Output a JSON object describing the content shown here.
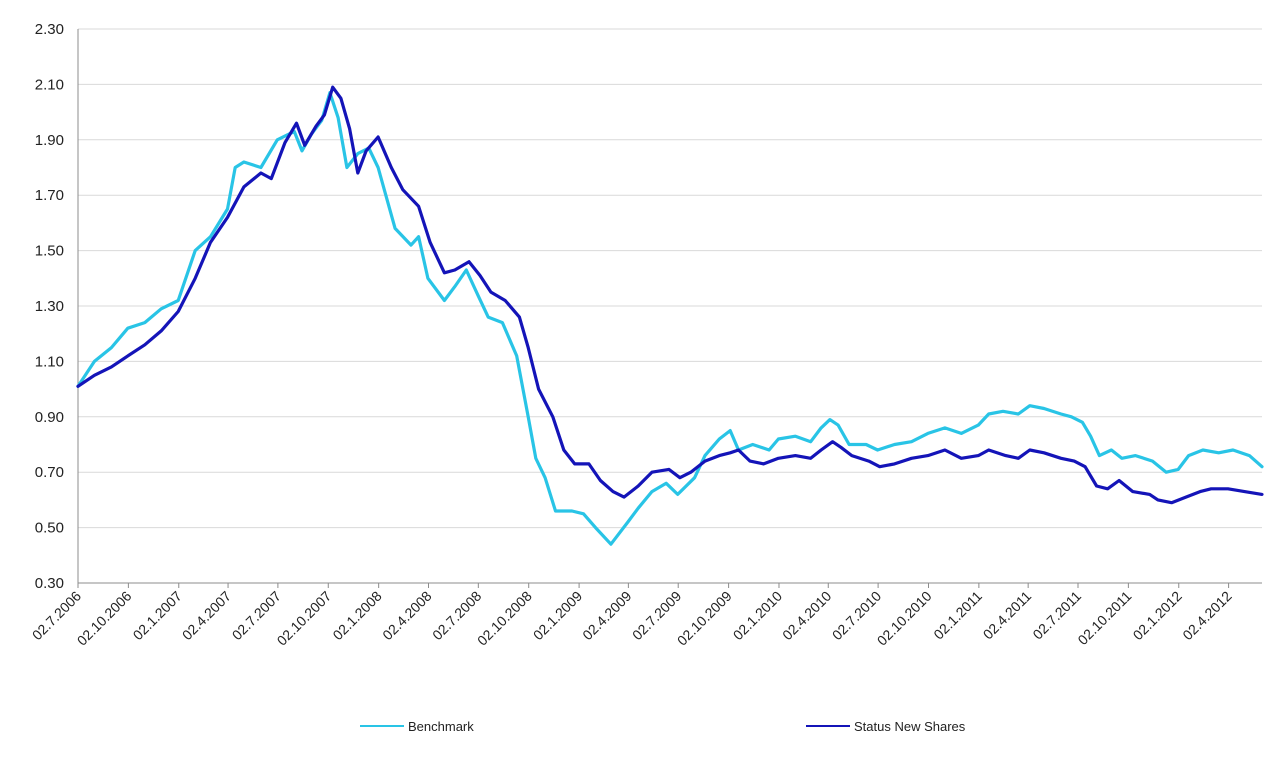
{
  "chart_data": {
    "type": "line",
    "title": "",
    "xlabel": "",
    "ylabel": "",
    "ylim": [
      0.3,
      2.3
    ],
    "xlim": [
      "2006-07-02",
      "2012-06-02"
    ],
    "grid": true,
    "legend_position": "bottom",
    "y_ticks": [
      "0.30",
      "0.50",
      "0.70",
      "0.90",
      "1.10",
      "1.30",
      "1.50",
      "1.70",
      "1.90",
      "2.10",
      "2.30"
    ],
    "x_ticks": [
      "02.7.2006",
      "02.10.2006",
      "02.1.2007",
      "02.4.2007",
      "02.7.2007",
      "02.10.2007",
      "02.1.2008",
      "02.4.2008",
      "02.7.2008",
      "02.10.2008",
      "02.1.2009",
      "02.4.2009",
      "02.7.2009",
      "02.10.2009",
      "02.1.2010",
      "02.4.2010",
      "02.7.2010",
      "02.10.2010",
      "02.1.2011",
      "02.4.2011",
      "02.7.2011",
      "02.10.2011",
      "02.1.2012",
      "02.4.2012"
    ],
    "series": [
      {
        "name": "Benchmark",
        "color": "#29c4e6",
        "points": [
          [
            "2006-07-02",
            1.01
          ],
          [
            "2006-08-01",
            1.1
          ],
          [
            "2006-09-01",
            1.15
          ],
          [
            "2006-10-01",
            1.22
          ],
          [
            "2006-11-01",
            1.24
          ],
          [
            "2006-12-01",
            1.29
          ],
          [
            "2007-01-01",
            1.32
          ],
          [
            "2007-02-01",
            1.5
          ],
          [
            "2007-03-01",
            1.55
          ],
          [
            "2007-04-01",
            1.65
          ],
          [
            "2007-04-15",
            1.8
          ],
          [
            "2007-05-01",
            1.82
          ],
          [
            "2007-06-01",
            1.8
          ],
          [
            "2007-07-01",
            1.9
          ],
          [
            "2007-08-01",
            1.93
          ],
          [
            "2007-08-15",
            1.86
          ],
          [
            "2007-09-01",
            1.92
          ],
          [
            "2007-09-20",
            1.97
          ],
          [
            "2007-10-05",
            2.07
          ],
          [
            "2007-10-20",
            1.98
          ],
          [
            "2007-11-05",
            1.8
          ],
          [
            "2007-11-25",
            1.85
          ],
          [
            "2007-12-15",
            1.87
          ],
          [
            "2008-01-01",
            1.8
          ],
          [
            "2008-02-01",
            1.58
          ],
          [
            "2008-03-01",
            1.52
          ],
          [
            "2008-03-15",
            1.55
          ],
          [
            "2008-04-01",
            1.4
          ],
          [
            "2008-05-01",
            1.32
          ],
          [
            "2008-05-20",
            1.37
          ],
          [
            "2008-06-10",
            1.43
          ],
          [
            "2008-07-01",
            1.34
          ],
          [
            "2008-07-20",
            1.26
          ],
          [
            "2008-08-15",
            1.24
          ],
          [
            "2008-09-10",
            1.12
          ],
          [
            "2008-10-01",
            0.9
          ],
          [
            "2008-10-15",
            0.75
          ],
          [
            "2008-11-01",
            0.68
          ],
          [
            "2008-11-20",
            0.56
          ],
          [
            "2008-12-20",
            0.56
          ],
          [
            "2009-01-10",
            0.55
          ],
          [
            "2009-02-01",
            0.5
          ],
          [
            "2009-03-01",
            0.44
          ],
          [
            "2009-04-01",
            0.52
          ],
          [
            "2009-04-20",
            0.57
          ],
          [
            "2009-05-15",
            0.63
          ],
          [
            "2009-06-10",
            0.66
          ],
          [
            "2009-07-01",
            0.62
          ],
          [
            "2009-08-01",
            0.68
          ],
          [
            "2009-08-20",
            0.76
          ],
          [
            "2009-09-15",
            0.82
          ],
          [
            "2009-10-05",
            0.85
          ],
          [
            "2009-10-20",
            0.78
          ],
          [
            "2009-11-15",
            0.8
          ],
          [
            "2009-12-15",
            0.78
          ],
          [
            "2010-01-01",
            0.82
          ],
          [
            "2010-02-01",
            0.83
          ],
          [
            "2010-03-01",
            0.81
          ],
          [
            "2010-03-20",
            0.86
          ],
          [
            "2010-04-05",
            0.89
          ],
          [
            "2010-04-20",
            0.87
          ],
          [
            "2010-05-10",
            0.8
          ],
          [
            "2010-06-10",
            0.8
          ],
          [
            "2010-07-01",
            0.78
          ],
          [
            "2010-08-01",
            0.8
          ],
          [
            "2010-09-01",
            0.81
          ],
          [
            "2010-10-01",
            0.84
          ],
          [
            "2010-11-01",
            0.86
          ],
          [
            "2010-12-01",
            0.84
          ],
          [
            "2011-01-01",
            0.87
          ],
          [
            "2011-01-20",
            0.91
          ],
          [
            "2011-02-15",
            0.92
          ],
          [
            "2011-03-15",
            0.91
          ],
          [
            "2011-04-05",
            0.94
          ],
          [
            "2011-05-01",
            0.93
          ],
          [
            "2011-06-01",
            0.91
          ],
          [
            "2011-06-20",
            0.9
          ],
          [
            "2011-07-10",
            0.88
          ],
          [
            "2011-07-25",
            0.83
          ],
          [
            "2011-08-10",
            0.76
          ],
          [
            "2011-09-01",
            0.78
          ],
          [
            "2011-09-20",
            0.75
          ],
          [
            "2011-10-15",
            0.76
          ],
          [
            "2011-11-15",
            0.74
          ],
          [
            "2011-12-10",
            0.7
          ],
          [
            "2012-01-01",
            0.71
          ],
          [
            "2012-01-20",
            0.76
          ],
          [
            "2012-02-15",
            0.78
          ],
          [
            "2012-03-15",
            0.77
          ],
          [
            "2012-04-10",
            0.78
          ],
          [
            "2012-05-10",
            0.76
          ],
          [
            "2012-06-02",
            0.72
          ]
        ]
      },
      {
        "name": "Status New Shares",
        "color": "#1414b8",
        "points": [
          [
            "2006-07-02",
            1.01
          ],
          [
            "2006-08-01",
            1.05
          ],
          [
            "2006-09-01",
            1.08
          ],
          [
            "2006-10-01",
            1.12
          ],
          [
            "2006-11-01",
            1.16
          ],
          [
            "2006-12-01",
            1.21
          ],
          [
            "2007-01-01",
            1.28
          ],
          [
            "2007-02-01",
            1.4
          ],
          [
            "2007-03-01",
            1.53
          ],
          [
            "2007-04-01",
            1.62
          ],
          [
            "2007-05-01",
            1.73
          ],
          [
            "2007-06-01",
            1.78
          ],
          [
            "2007-06-20",
            1.76
          ],
          [
            "2007-07-15",
            1.89
          ],
          [
            "2007-08-05",
            1.96
          ],
          [
            "2007-08-20",
            1.88
          ],
          [
            "2007-09-10",
            1.95
          ],
          [
            "2007-09-25",
            1.99
          ],
          [
            "2007-10-10",
            2.09
          ],
          [
            "2007-10-25",
            2.05
          ],
          [
            "2007-11-10",
            1.94
          ],
          [
            "2007-11-25",
            1.78
          ],
          [
            "2007-12-10",
            1.86
          ],
          [
            "2008-01-01",
            1.91
          ],
          [
            "2008-01-25",
            1.8
          ],
          [
            "2008-02-15",
            1.72
          ],
          [
            "2008-03-15",
            1.66
          ],
          [
            "2008-04-05",
            1.53
          ],
          [
            "2008-05-01",
            1.42
          ],
          [
            "2008-05-20",
            1.43
          ],
          [
            "2008-06-15",
            1.46
          ],
          [
            "2008-07-05",
            1.41
          ],
          [
            "2008-07-25",
            1.35
          ],
          [
            "2008-08-20",
            1.32
          ],
          [
            "2008-09-15",
            1.26
          ],
          [
            "2008-10-01",
            1.15
          ],
          [
            "2008-10-20",
            1.0
          ],
          [
            "2008-11-15",
            0.9
          ],
          [
            "2008-12-05",
            0.78
          ],
          [
            "2008-12-25",
            0.73
          ],
          [
            "2009-01-20",
            0.73
          ],
          [
            "2009-02-10",
            0.67
          ],
          [
            "2009-03-05",
            0.63
          ],
          [
            "2009-03-25",
            0.61
          ],
          [
            "2009-04-20",
            0.65
          ],
          [
            "2009-05-15",
            0.7
          ],
          [
            "2009-06-15",
            0.71
          ],
          [
            "2009-07-05",
            0.68
          ],
          [
            "2009-07-25",
            0.7
          ],
          [
            "2009-08-20",
            0.74
          ],
          [
            "2009-09-15",
            0.76
          ],
          [
            "2009-10-05",
            0.77
          ],
          [
            "2009-10-20",
            0.78
          ],
          [
            "2009-11-10",
            0.74
          ],
          [
            "2009-12-05",
            0.73
          ],
          [
            "2010-01-01",
            0.75
          ],
          [
            "2010-02-01",
            0.76
          ],
          [
            "2010-03-01",
            0.75
          ],
          [
            "2010-03-20",
            0.78
          ],
          [
            "2010-04-10",
            0.81
          ],
          [
            "2010-04-25",
            0.79
          ],
          [
            "2010-05-15",
            0.76
          ],
          [
            "2010-06-15",
            0.74
          ],
          [
            "2010-07-05",
            0.72
          ],
          [
            "2010-08-01",
            0.73
          ],
          [
            "2010-09-01",
            0.75
          ],
          [
            "2010-10-01",
            0.76
          ],
          [
            "2010-11-01",
            0.78
          ],
          [
            "2010-12-01",
            0.75
          ],
          [
            "2011-01-01",
            0.76
          ],
          [
            "2011-01-20",
            0.78
          ],
          [
            "2011-02-20",
            0.76
          ],
          [
            "2011-03-15",
            0.75
          ],
          [
            "2011-04-05",
            0.78
          ],
          [
            "2011-05-01",
            0.77
          ],
          [
            "2011-06-01",
            0.75
          ],
          [
            "2011-06-25",
            0.74
          ],
          [
            "2011-07-15",
            0.72
          ],
          [
            "2011-08-05",
            0.65
          ],
          [
            "2011-08-25",
            0.64
          ],
          [
            "2011-09-15",
            0.67
          ],
          [
            "2011-10-10",
            0.63
          ],
          [
            "2011-11-10",
            0.62
          ],
          [
            "2011-11-25",
            0.6
          ],
          [
            "2011-12-20",
            0.59
          ],
          [
            "2012-01-15",
            0.61
          ],
          [
            "2012-02-10",
            0.63
          ],
          [
            "2012-03-01",
            0.64
          ],
          [
            "2012-04-01",
            0.64
          ],
          [
            "2012-05-01",
            0.63
          ],
          [
            "2012-06-02",
            0.62
          ]
        ]
      }
    ]
  }
}
